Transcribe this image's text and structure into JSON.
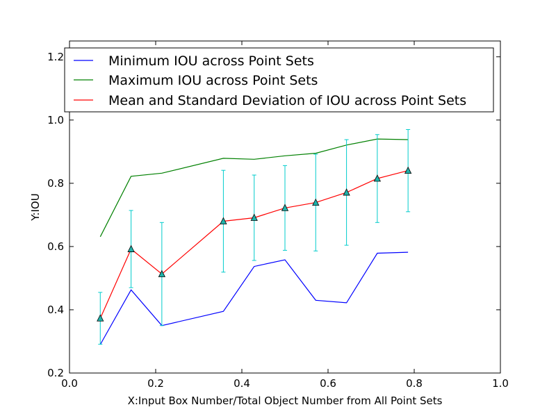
{
  "chart_data": {
    "type": "line",
    "xlabel": "X:Input Box Number/Total Object Number from All Point Sets",
    "ylabel": "Y:IOU",
    "xlim": [
      0.0,
      1.0
    ],
    "ylim": [
      0.2,
      1.25
    ],
    "xticks": [
      "0.0",
      "0.2",
      "0.4",
      "0.6",
      "0.8",
      "1.0"
    ],
    "yticks": [
      "0.2",
      "0.4",
      "0.6",
      "0.8",
      "1.0",
      "1.2"
    ],
    "grid": false,
    "legend_position": "upper-center",
    "series": [
      {
        "name": "Minimum IOU across Point Sets",
        "color": "#0000ff",
        "x": [
          0.0714,
          0.1429,
          0.2143,
          0.3571,
          0.4286,
          0.5,
          0.5714,
          0.6429,
          0.7143,
          0.7857
        ],
        "y": [
          0.29,
          0.463,
          0.35,
          0.395,
          0.537,
          0.558,
          0.43,
          0.422,
          0.579,
          0.582
        ]
      },
      {
        "name": "Maximum IOU across Point Sets",
        "color": "#008000",
        "x": [
          0.0714,
          0.1429,
          0.2143,
          0.3571,
          0.4286,
          0.5,
          0.5714,
          0.6429,
          0.7143,
          0.7857
        ],
        "y": [
          0.631,
          0.822,
          0.832,
          0.879,
          0.876,
          0.887,
          0.895,
          0.921,
          0.94,
          0.938
        ]
      },
      {
        "name": "Mean and Standard Deviation of IOU across Point Sets",
        "color": "#ff0000",
        "marker_color": "#20b2aa",
        "errorbar_color": "#00cccc",
        "x": [
          0.0714,
          0.1429,
          0.2143,
          0.3571,
          0.4286,
          0.5,
          0.5714,
          0.6429,
          0.7143,
          0.7857
        ],
        "y": [
          0.373,
          0.592,
          0.513,
          0.68,
          0.691,
          0.722,
          0.739,
          0.771,
          0.815,
          0.84
        ],
        "err": [
          0.082,
          0.122,
          0.163,
          0.161,
          0.135,
          0.134,
          0.153,
          0.167,
          0.139,
          0.13
        ]
      }
    ]
  }
}
